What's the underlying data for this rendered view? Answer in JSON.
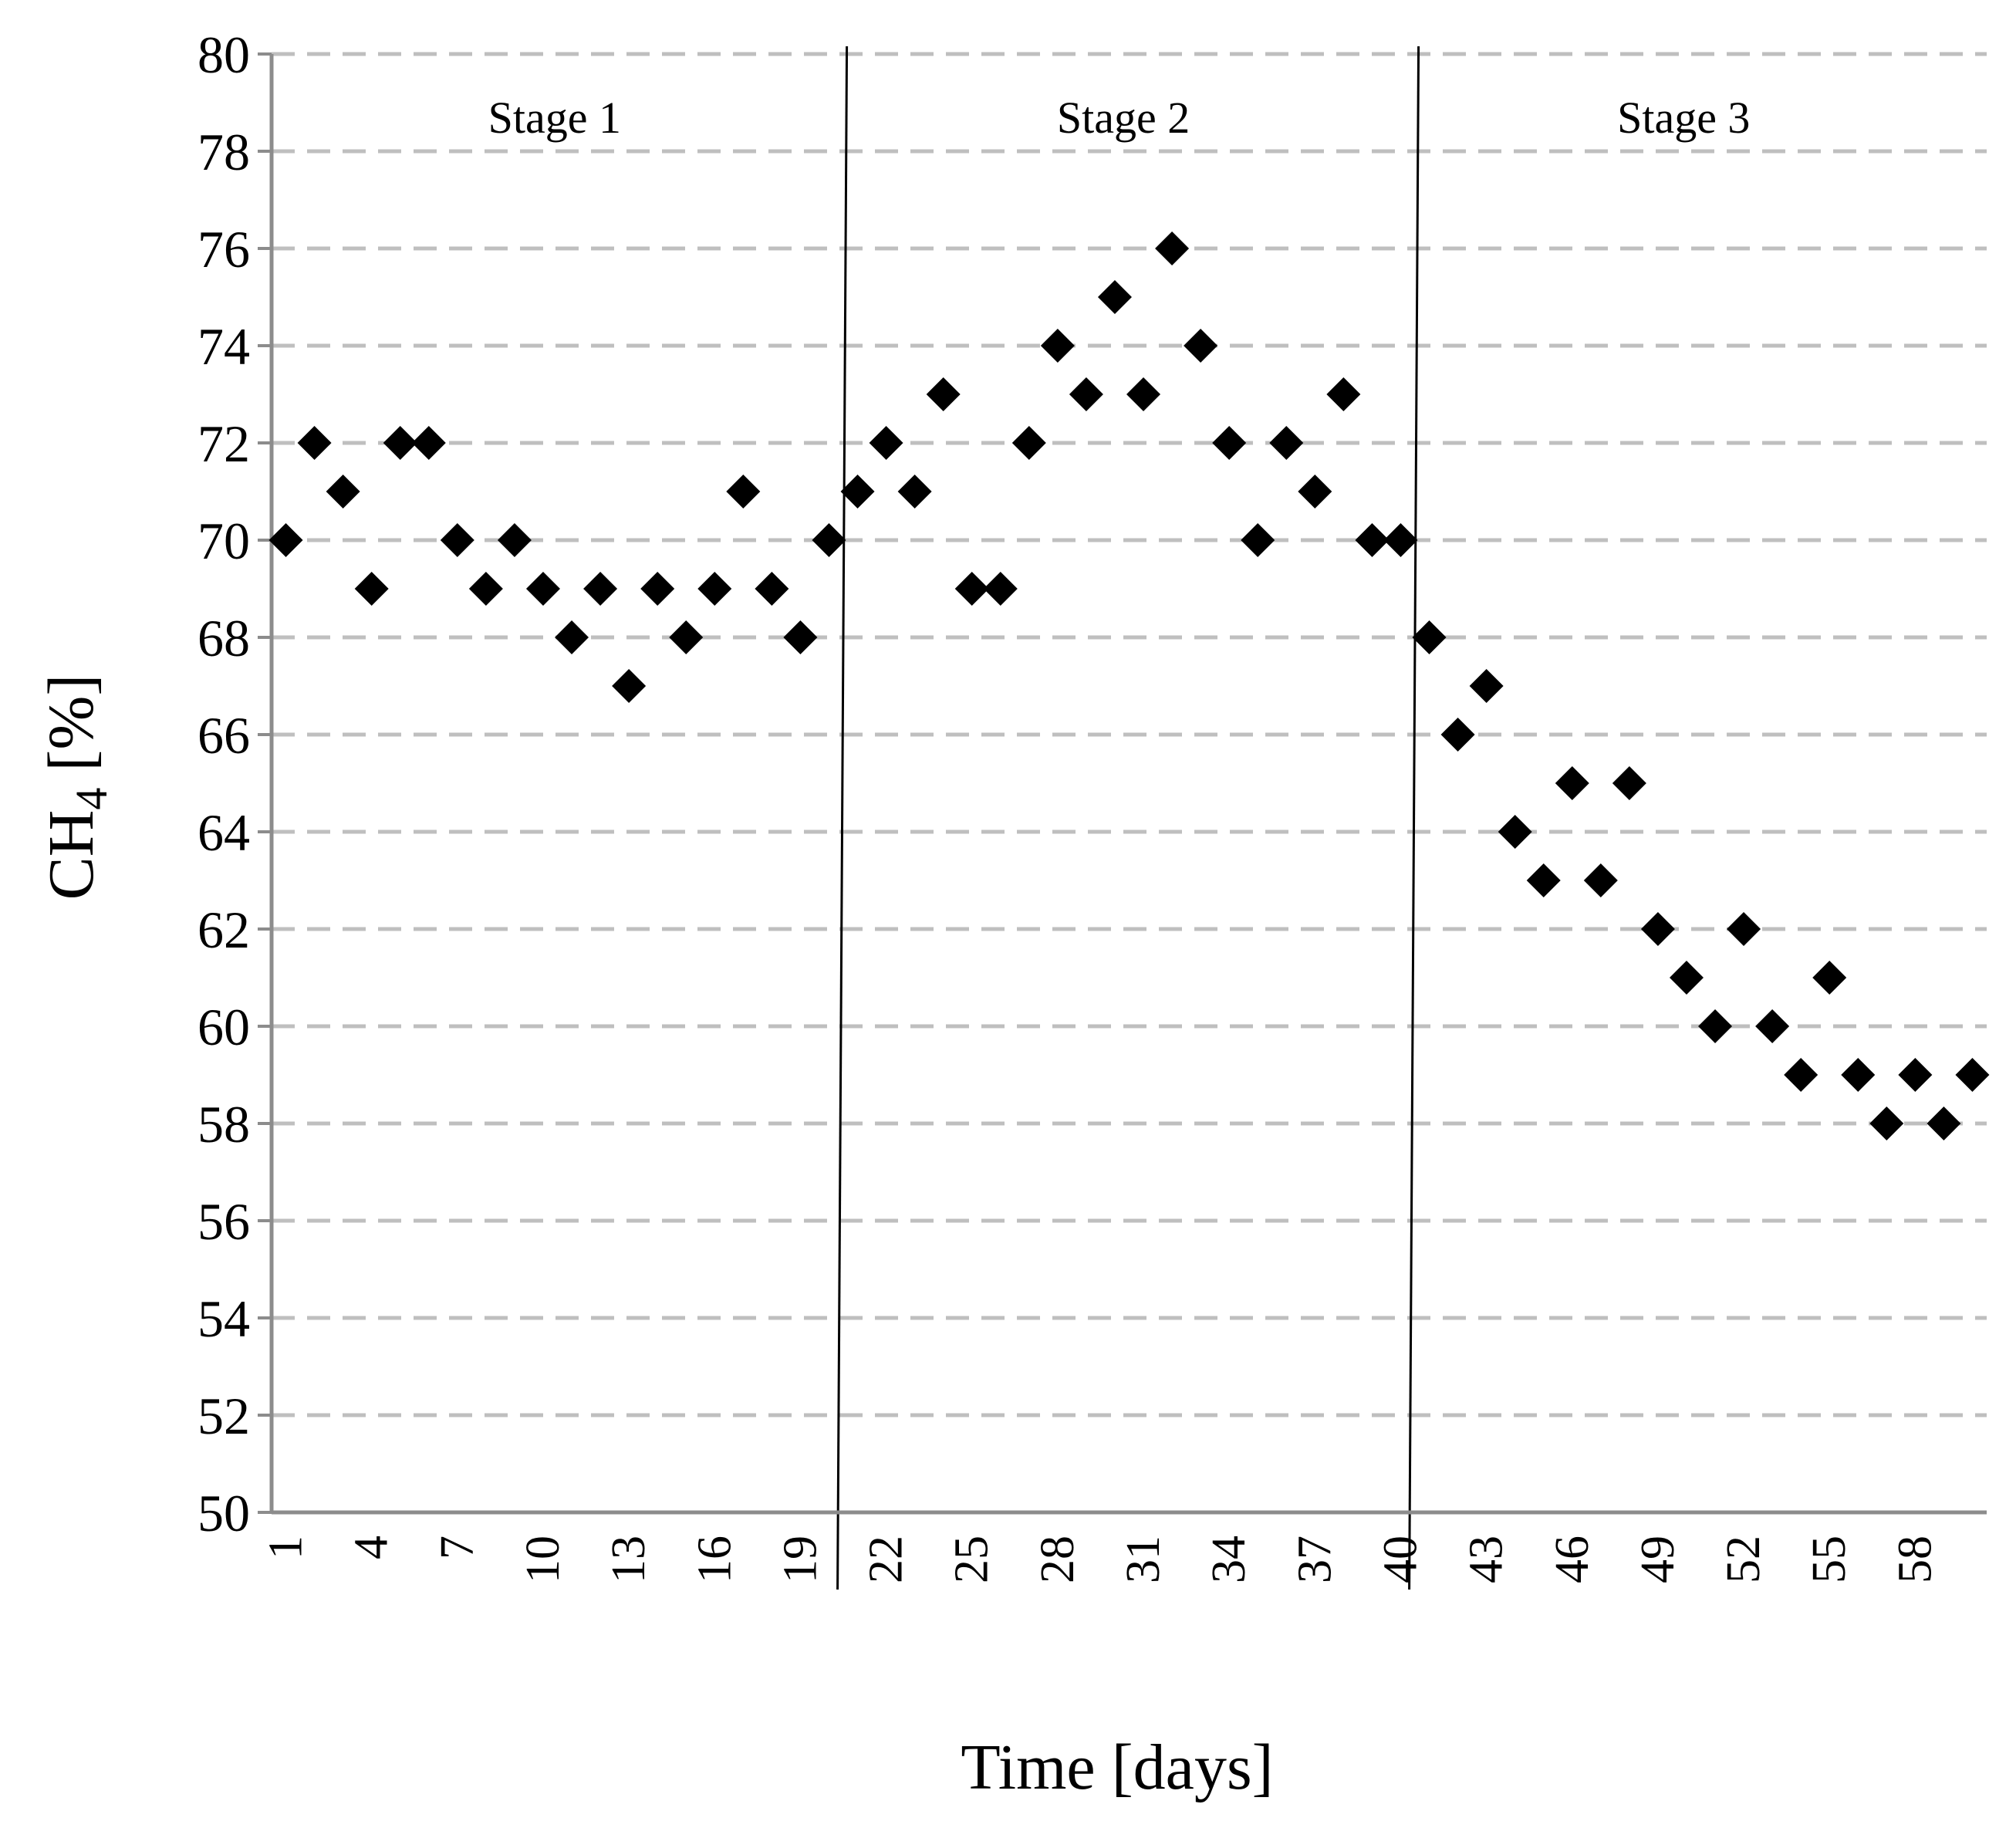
{
  "chart_data": {
    "type": "scatter",
    "title": "",
    "xlabel": "Time [days]",
    "ylabel": {
      "main": "CH",
      "subscript": "4",
      "suffix": " [%]"
    },
    "ylim": [
      50,
      80
    ],
    "yticks": [
      "50",
      "52",
      "54",
      "56",
      "58",
      "60",
      "62",
      "64",
      "66",
      "68",
      "70",
      "72",
      "74",
      "76",
      "78",
      "80"
    ],
    "xlim": [
      1,
      60
    ],
    "xticks": [
      "1",
      "4",
      "7",
      "10",
      "13",
      "16",
      "19",
      "22",
      "25",
      "28",
      "31",
      "34",
      "37",
      "40",
      "43",
      "46",
      "49",
      "52",
      "55",
      "58"
    ],
    "grid": "horizontal-dashed",
    "marker": "diamond",
    "marker_color": "#000000",
    "grid_color": "#bfbfbf",
    "stages": [
      {
        "label": "Stage 1",
        "start": 1,
        "end": 20.8
      },
      {
        "label": "Stage 2",
        "start": 20.8,
        "end": 40.8
      },
      {
        "label": "Stage 3",
        "start": 40.8,
        "end": 60
      }
    ],
    "series": [
      {
        "x": [
          1,
          2,
          3,
          4,
          5,
          6,
          7,
          8,
          9,
          10,
          11,
          12,
          13,
          14,
          15,
          16,
          17,
          18,
          19,
          20,
          21,
          22,
          23,
          24,
          25,
          26,
          27,
          28,
          29,
          30,
          31,
          32,
          33,
          34,
          35,
          36,
          37,
          38,
          39,
          40,
          41,
          42,
          43,
          44,
          45,
          46,
          47,
          48,
          49,
          50,
          51,
          52,
          53,
          54,
          55,
          56,
          57,
          58,
          59,
          60
        ],
        "y": [
          70,
          72,
          71,
          69,
          72,
          72,
          70,
          69,
          70,
          69,
          68,
          69,
          67,
          69,
          68,
          69,
          71,
          69,
          68,
          70,
          71,
          72,
          71,
          73,
          69,
          69,
          72,
          74,
          73,
          75,
          73,
          76,
          74,
          72,
          70,
          72,
          71,
          73,
          70,
          70,
          68,
          66,
          67,
          64,
          63,
          65,
          63,
          65,
          62,
          61,
          60,
          62,
          60,
          59,
          61,
          59,
          58,
          59,
          58,
          59
        ]
      }
    ]
  }
}
